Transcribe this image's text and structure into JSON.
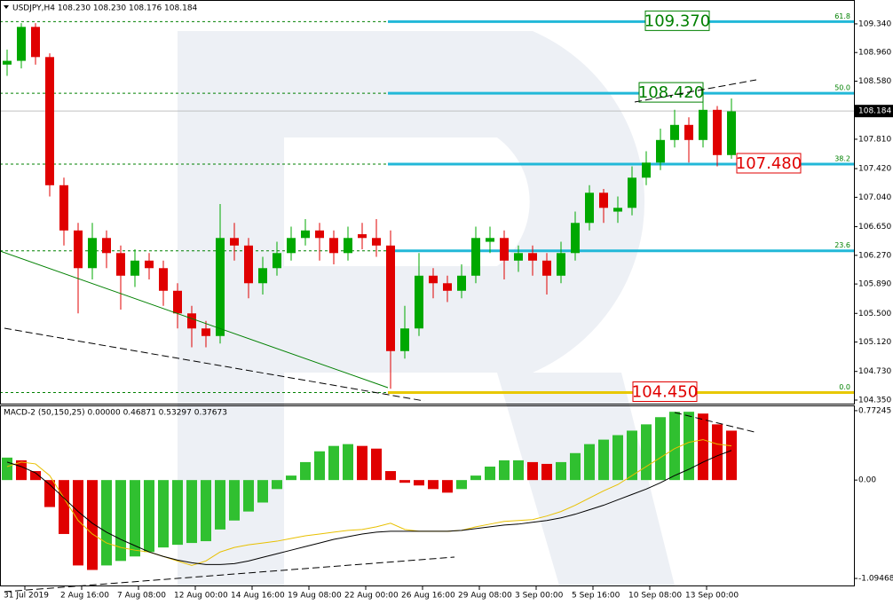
{
  "chart_data": [
    {
      "type": "candlestick",
      "title": "USDJPY,H4  108.230 108.230 108.176 108.184",
      "xtick_labels": [
        "31 Jul 2019",
        "2 Aug 16:00",
        "7 Aug 08:00",
        "12 Aug 00:00",
        "14 Aug 16:00",
        "19 Aug 08:00",
        "22 Aug 00:00",
        "26 Aug 16:00",
        "29 Aug 08:00",
        "3 Sep 00:00",
        "5 Sep 16:00",
        "10 Sep 08:00",
        "13 Sep 00:00"
      ],
      "open": [
        108.8,
        108.85,
        109.3,
        108.9,
        107.2,
        106.6,
        106.1,
        106.5,
        106.3,
        106.0,
        106.2,
        106.1,
        105.8,
        105.5,
        105.3,
        105.2,
        106.5,
        106.4,
        105.9,
        106.1,
        106.3,
        106.5,
        106.6,
        106.5,
        106.3,
        106.55,
        106.5,
        106.4,
        105.0,
        105.3,
        106.0,
        105.9,
        105.8,
        106.0,
        106.45,
        106.5,
        106.2,
        106.3,
        106.2,
        106.0,
        106.3,
        106.7,
        107.1,
        106.85,
        106.9,
        107.3,
        107.5,
        107.8,
        108.0,
        107.8,
        108.2,
        107.6
      ],
      "high": [
        109.0,
        109.35,
        109.35,
        108.95,
        107.3,
        106.7,
        106.7,
        106.6,
        106.4,
        106.35,
        106.3,
        106.2,
        105.9,
        105.6,
        105.4,
        106.95,
        106.7,
        106.5,
        106.25,
        106.45,
        106.65,
        106.75,
        106.7,
        106.6,
        106.65,
        106.7,
        106.75,
        106.6,
        105.6,
        106.3,
        106.1,
        106.0,
        106.15,
        106.65,
        106.65,
        106.6,
        106.4,
        106.4,
        106.3,
        106.45,
        106.85,
        107.2,
        107.15,
        107.05,
        107.45,
        107.65,
        107.95,
        108.2,
        108.1,
        108.3,
        108.25,
        108.35
      ],
      "low": [
        108.65,
        108.75,
        108.8,
        107.05,
        106.4,
        105.5,
        105.95,
        106.1,
        105.55,
        105.85,
        105.95,
        105.6,
        105.3,
        105.05,
        105.05,
        105.1,
        106.2,
        105.7,
        105.75,
        106.0,
        106.2,
        106.4,
        106.2,
        106.15,
        106.2,
        106.35,
        106.25,
        104.5,
        104.9,
        105.2,
        105.7,
        105.65,
        105.7,
        105.9,
        106.3,
        105.95,
        106.05,
        106.0,
        105.75,
        105.9,
        106.2,
        106.6,
        106.7,
        106.7,
        106.8,
        107.2,
        107.4,
        107.7,
        107.5,
        107.7,
        107.45,
        107.55
      ],
      "close": [
        108.85,
        109.3,
        108.9,
        107.2,
        106.6,
        106.1,
        106.5,
        106.3,
        106.0,
        106.2,
        106.1,
        105.8,
        105.5,
        105.3,
        105.2,
        106.5,
        106.4,
        105.9,
        106.1,
        106.3,
        106.5,
        106.6,
        106.5,
        106.3,
        106.5,
        106.5,
        106.4,
        105.0,
        105.3,
        106.0,
        105.9,
        105.8,
        106.0,
        106.5,
        106.5,
        106.2,
        106.3,
        106.2,
        106.0,
        106.3,
        106.7,
        107.1,
        106.9,
        106.9,
        107.3,
        107.5,
        107.8,
        108.0,
        107.8,
        108.2,
        107.6,
        108.18
      ],
      "up_color": "#00a800",
      "down_color": "#e00000",
      "ylim": [
        104.303,
        109.645
      ],
      "yticks": [
        {
          "value": 109.34,
          "label": "109.340"
        },
        {
          "value": 108.96,
          "label": "108.960"
        },
        {
          "value": 108.58,
          "label": "108.580"
        },
        {
          "value": 107.81,
          "label": "107.810"
        },
        {
          "value": 107.42,
          "label": "107.420"
        },
        {
          "value": 107.04,
          "label": "107.040"
        },
        {
          "value": 106.65,
          "label": "106.650"
        },
        {
          "value": 106.27,
          "label": "106.270"
        },
        {
          "value": 105.89,
          "label": "105.890"
        },
        {
          "value": 105.5,
          "label": "105.500"
        },
        {
          "value": 105.12,
          "label": "105.120"
        },
        {
          "value": 104.73,
          "label": "104.730"
        },
        {
          "value": 104.35,
          "label": "104.350"
        }
      ],
      "current_price": {
        "value": 108.184,
        "label": "108.184"
      },
      "fib_color": "#22b8d8",
      "fib_zero_color": "#e8c800",
      "fib_levels": [
        {
          "level": 61.8,
          "price": 109.37,
          "price_label": "109.370",
          "box_color": "#008000"
        },
        {
          "level": {
            "value": 50,
            "label": "50.0"
          },
          "price": 108.42,
          "price_label": "108.420",
          "box_color": "#008000"
        },
        {
          "level": 38.2,
          "price": 107.48,
          "price_label": "107.480",
          "box_color": "#e00000"
        },
        {
          "level": 23.6,
          "price": 106.33
        },
        {
          "level": {
            "value": 0,
            "label": "0.0"
          },
          "price": 104.45,
          "price_label": "104.450",
          "box_color": "#e00000"
        }
      ]
    },
    {
      "type": "macd",
      "title": "MACD-2 (50,150,25) 0.00000 0.46871 0.53297 0.37673",
      "ylim": [
        -1.173,
        0.821
      ],
      "yticks": [
        0.77245,
        {
          "value": 0,
          "label": "0.00"
        },
        -1.09468
      ],
      "up_color": "#30c030",
      "down_color": "#e00000",
      "histogram": [
        0.25,
        0.22,
        0.1,
        -0.3,
        -0.6,
        -0.95,
        -1.0,
        -0.95,
        -0.9,
        -0.85,
        -0.8,
        -0.75,
        -0.72,
        -0.7,
        -0.68,
        -0.55,
        -0.45,
        -0.35,
        -0.25,
        -0.1,
        0.05,
        0.2,
        0.32,
        0.38,
        0.4,
        0.38,
        0.35,
        0.1,
        -0.03,
        -0.06,
        -0.1,
        -0.14,
        -0.1,
        0.05,
        0.15,
        0.22,
        0.22,
        0.2,
        0.18,
        0.2,
        0.3,
        0.4,
        0.45,
        0.5,
        0.55,
        0.62,
        0.7,
        0.76,
        0.76,
        0.74,
        0.62,
        0.55
      ],
      "series": [
        {
          "color": "#e8c000",
          "values": [
            0.15,
            0.2,
            0.18,
            0.05,
            -0.2,
            -0.45,
            -0.6,
            -0.7,
            -0.75,
            -0.78,
            -0.8,
            -0.85,
            -0.9,
            -0.95,
            -0.9,
            -0.8,
            -0.75,
            -0.72,
            -0.7,
            -0.68,
            -0.65,
            -0.62,
            -0.6,
            -0.58,
            -0.56,
            -0.55,
            -0.52,
            -0.48,
            -0.55,
            -0.57,
            -0.57,
            -0.57,
            -0.56,
            -0.52,
            -0.49,
            -0.46,
            -0.45,
            -0.44,
            -0.4,
            -0.35,
            -0.28,
            -0.2,
            -0.12,
            -0.05,
            0.05,
            0.15,
            0.25,
            0.35,
            0.42,
            0.45,
            0.4,
            0.38
          ]
        },
        {
          "color": "#000000",
          "values": [
            0.2,
            0.15,
            0.08,
            -0.05,
            -0.2,
            -0.35,
            -0.48,
            -0.58,
            -0.66,
            -0.73,
            -0.8,
            -0.85,
            -0.89,
            -0.92,
            -0.94,
            -0.94,
            -0.93,
            -0.9,
            -0.86,
            -0.82,
            -0.78,
            -0.74,
            -0.7,
            -0.66,
            -0.63,
            -0.6,
            -0.58,
            -0.57,
            -0.57,
            -0.57,
            -0.57,
            -0.57,
            -0.56,
            -0.54,
            -0.52,
            -0.5,
            -0.49,
            -0.47,
            -0.45,
            -0.42,
            -0.38,
            -0.33,
            -0.28,
            -0.22,
            -0.16,
            -0.1,
            -0.03,
            0.05,
            0.12,
            0.2,
            0.27,
            0.33
          ]
        }
      ]
    }
  ]
}
